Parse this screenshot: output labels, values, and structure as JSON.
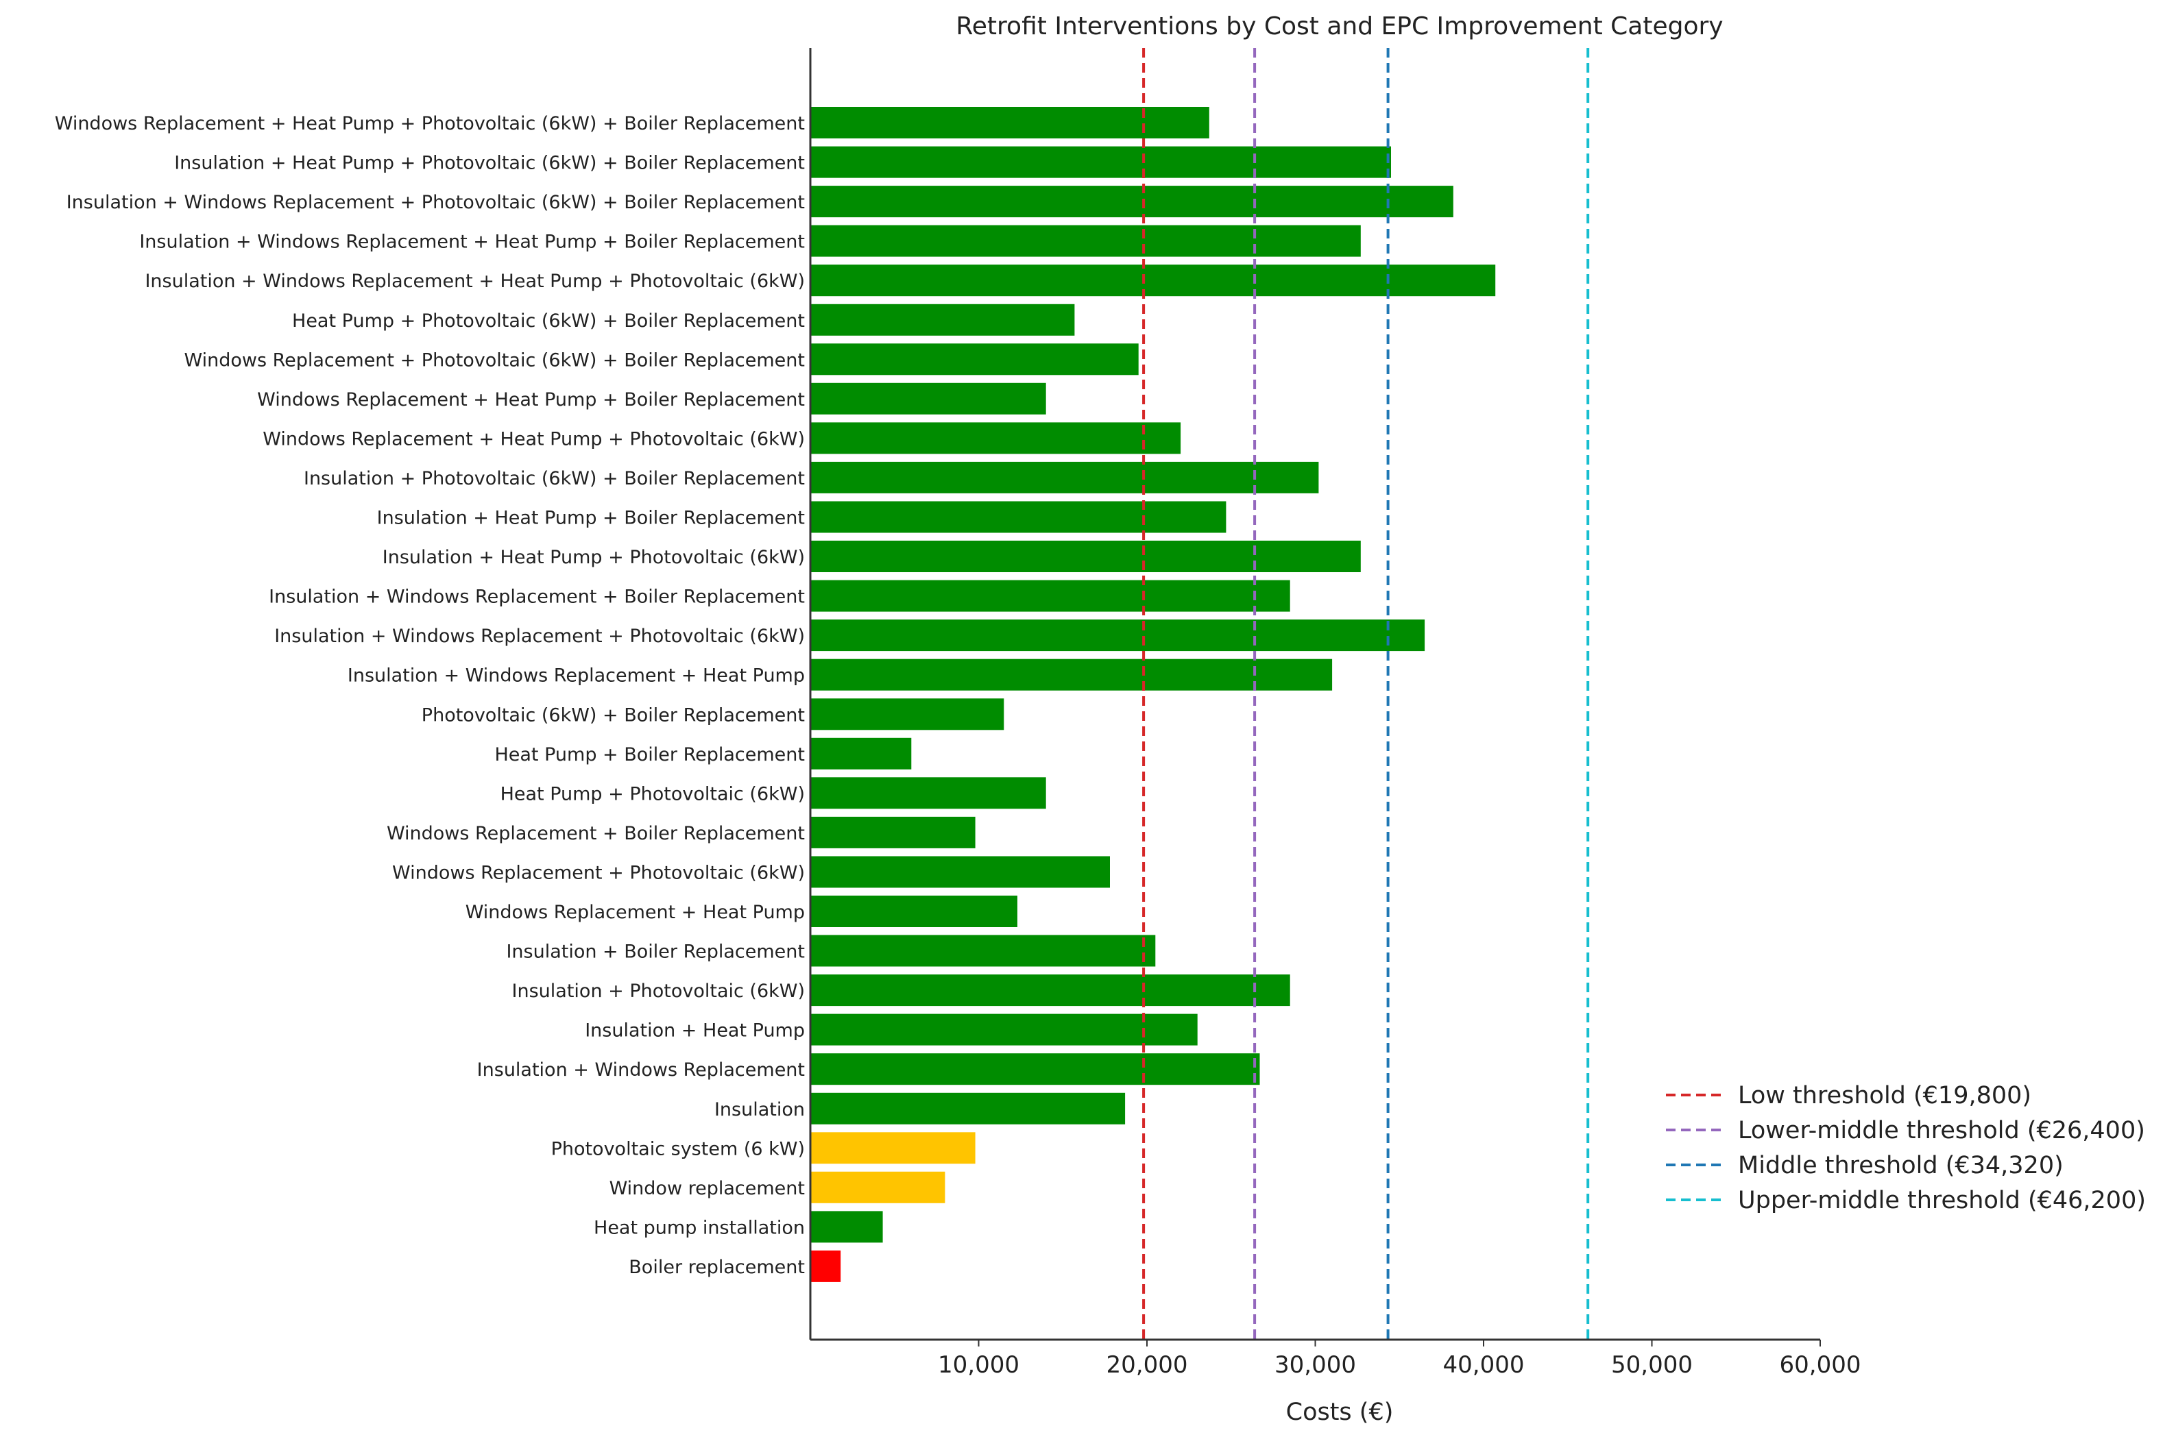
{
  "chart_data": {
    "type": "bar",
    "orientation": "horizontal",
    "title": "Retrofit Interventions by Cost and EPC Improvement Category",
    "xlabel": "Costs (€)",
    "ylabel": "",
    "xlim": [
      0,
      60000
    ],
    "grid": false,
    "x_ticks": [
      10000,
      20000,
      30000,
      40000,
      50000,
      60000
    ],
    "x_tick_labels": [
      "10,000",
      "20,000",
      "30,000",
      "40,000",
      "50,000",
      "60,000"
    ],
    "category_colors": {
      "green": "#008c00",
      "yellow": "#ffc400",
      "red": "#ff0000"
    },
    "bars": [
      {
        "label": "Windows Replacement + Heat Pump + Photovoltaic (6kW) + Boiler Replacement",
        "value": 23700,
        "color": "green"
      },
      {
        "label": "Insulation + Heat Pump + Photovoltaic (6kW) + Boiler Replacement",
        "value": 34500,
        "color": "green"
      },
      {
        "label": "Insulation + Windows Replacement + Photovoltaic (6kW) + Boiler Replacement",
        "value": 38200,
        "color": "green"
      },
      {
        "label": "Insulation + Windows Replacement + Heat Pump + Boiler Replacement",
        "value": 32700,
        "color": "green"
      },
      {
        "label": "Insulation + Windows Replacement + Heat Pump + Photovoltaic (6kW)",
        "value": 40700,
        "color": "green"
      },
      {
        "label": "Heat Pump + Photovoltaic (6kW) + Boiler Replacement",
        "value": 15700,
        "color": "green"
      },
      {
        "label": "Windows Replacement + Photovoltaic (6kW) + Boiler Replacement",
        "value": 19500,
        "color": "green"
      },
      {
        "label": "Windows Replacement + Heat Pump + Boiler Replacement",
        "value": 14000,
        "color": "green"
      },
      {
        "label": "Windows Replacement + Heat Pump + Photovoltaic (6kW)",
        "value": 22000,
        "color": "green"
      },
      {
        "label": "Insulation + Photovoltaic (6kW) + Boiler Replacement",
        "value": 30200,
        "color": "green"
      },
      {
        "label": "Insulation + Heat Pump + Boiler Replacement",
        "value": 24700,
        "color": "green"
      },
      {
        "label": "Insulation + Heat Pump + Photovoltaic (6kW)",
        "value": 32700,
        "color": "green"
      },
      {
        "label": "Insulation + Windows Replacement + Boiler Replacement",
        "value": 28500,
        "color": "green"
      },
      {
        "label": "Insulation + Windows Replacement + Photovoltaic (6kW)",
        "value": 36500,
        "color": "green"
      },
      {
        "label": "Insulation + Windows Replacement + Heat Pump",
        "value": 31000,
        "color": "green"
      },
      {
        "label": "Photovoltaic (6kW) + Boiler Replacement",
        "value": 11500,
        "color": "green"
      },
      {
        "label": "Heat Pump + Boiler Replacement",
        "value": 6000,
        "color": "green"
      },
      {
        "label": "Heat Pump + Photovoltaic (6kW)",
        "value": 14000,
        "color": "green"
      },
      {
        "label": "Windows Replacement + Boiler Replacement",
        "value": 9800,
        "color": "green"
      },
      {
        "label": "Windows Replacement + Photovoltaic (6kW)",
        "value": 17800,
        "color": "green"
      },
      {
        "label": "Windows Replacement + Heat Pump",
        "value": 12300,
        "color": "green"
      },
      {
        "label": "Insulation + Boiler Replacement",
        "value": 20500,
        "color": "green"
      },
      {
        "label": "Insulation + Photovoltaic (6kW)",
        "value": 28500,
        "color": "green"
      },
      {
        "label": "Insulation + Heat Pump",
        "value": 23000,
        "color": "green"
      },
      {
        "label": "Insulation + Windows Replacement",
        "value": 26700,
        "color": "green"
      },
      {
        "label": "Insulation",
        "value": 18700,
        "color": "green"
      },
      {
        "label": "Photovoltaic system (6 kW)",
        "value": 9800,
        "color": "yellow"
      },
      {
        "label": "Window replacement",
        "value": 8000,
        "color": "yellow"
      },
      {
        "label": "Heat pump installation",
        "value": 4300,
        "color": "green"
      },
      {
        "label": "Boiler replacement",
        "value": 1800,
        "color": "red"
      }
    ],
    "thresholds": [
      {
        "label": "Low threshold (€19,800)",
        "value": 19800,
        "color": "#d62728"
      },
      {
        "label": "Lower-middle threshold (€26,400)",
        "value": 26400,
        "color": "#9467bd"
      },
      {
        "label": "Middle threshold (€34,320)",
        "value": 34320,
        "color": "#1f77b4"
      },
      {
        "label": "Upper-middle threshold (€46,200)",
        "value": 46200,
        "color": "#17becf"
      }
    ],
    "legend_position": "lower-right"
  }
}
